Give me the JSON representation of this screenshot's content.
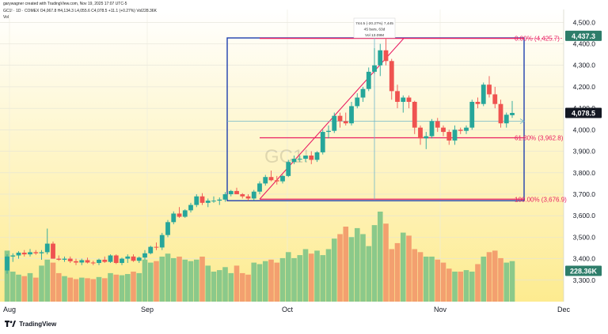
{
  "header": {
    "credit": "garywagner created with TradingView.com, Nov 19, 2025 17:07 UTC-5",
    "symbol_line": "GC1! · 1D · COMEX  O4,067.8  H4,134.3  L4,055.6  C4,078.5  +11.1 (+0.27%)  Vol228.36K",
    "vol_label": "Vol"
  },
  "branding": {
    "name": "TradingView"
  },
  "watermark": "GC1!",
  "measure_box": {
    "line1": "744.5 (-20.27%) 7,445",
    "line2": "45 bars, 63d",
    "line3": "Vol 13.09M"
  },
  "colors": {
    "up": "#26a69a",
    "down": "#ef5350",
    "vol_up": "#8bc98a",
    "vol_down": "#f3a06f",
    "fib": "#e91e63",
    "box": "#1e3fae",
    "trend": "#e91e63"
  },
  "chart_data": {
    "type": "candlestick",
    "x_ticks": [
      "Aug",
      "Sep",
      "Oct",
      "Nov",
      "Dec"
    ],
    "y_ticks": [
      "3,300.0",
      "3,400.0",
      "3,500.0",
      "3,600.0",
      "3,700.0",
      "3,800.0",
      "3,900.0",
      "4,000.0",
      "4,100.0",
      "4,200.0",
      "4,300.0",
      "4,400.0",
      "4,500.0"
    ],
    "ylim": [
      3200,
      4560
    ],
    "grid": true,
    "price_labels": {
      "last": "4,078.5",
      "high": "4,437.3",
      "volume": "228.36K"
    },
    "fib_levels": [
      {
        "label": "0.00% (4,425.7)",
        "value": 4425.7
      },
      {
        "label": "61.80% (3,962.8)",
        "value": 3962.8
      },
      {
        "label": "100.00% (3,676.9)",
        "value": 3676.9
      }
    ],
    "candles": [
      [
        3345,
        3420,
        3330,
        3410,
        170
      ],
      [
        3410,
        3425,
        3385,
        3415,
        100
      ],
      [
        3415,
        3435,
        3400,
        3428,
        90
      ],
      [
        3428,
        3440,
        3410,
        3420,
        85
      ],
      [
        3420,
        3445,
        3410,
        3430,
        95
      ],
      [
        3430,
        3440,
        3418,
        3425,
        80
      ],
      [
        3425,
        3440,
        3395,
        3430,
        120
      ],
      [
        3430,
        3540,
        3420,
        3470,
        140
      ],
      [
        3470,
        3480,
        3400,
        3400,
        130
      ],
      [
        3400,
        3415,
        3390,
        3395,
        95
      ],
      [
        3395,
        3410,
        3385,
        3400,
        85
      ],
      [
        3400,
        3410,
        3380,
        3388,
        80
      ],
      [
        3388,
        3400,
        3370,
        3382,
        75
      ],
      [
        3382,
        3400,
        3370,
        3393,
        80
      ],
      [
        3393,
        3405,
        3378,
        3382,
        78
      ],
      [
        3382,
        3390,
        3370,
        3380,
        75
      ],
      [
        3380,
        3400,
        3370,
        3395,
        82
      ],
      [
        3395,
        3410,
        3380,
        3385,
        78
      ],
      [
        3385,
        3420,
        3380,
        3415,
        95
      ],
      [
        3415,
        3420,
        3375,
        3380,
        90
      ],
      [
        3380,
        3405,
        3370,
        3400,
        88
      ],
      [
        3400,
        3420,
        3380,
        3410,
        92
      ],
      [
        3410,
        3420,
        3385,
        3390,
        100
      ],
      [
        3390,
        3410,
        3380,
        3405,
        95
      ],
      [
        3405,
        3440,
        3395,
        3425,
        140
      ],
      [
        3425,
        3460,
        3420,
        3455,
        130
      ],
      [
        3455,
        3475,
        3440,
        3452,
        135
      ],
      [
        3452,
        3520,
        3440,
        3510,
        150
      ],
      [
        3510,
        3580,
        3500,
        3570,
        160
      ],
      [
        3570,
        3620,
        3560,
        3610,
        145
      ],
      [
        3610,
        3640,
        3590,
        3595,
        150
      ],
      [
        3595,
        3630,
        3590,
        3625,
        140
      ],
      [
        3625,
        3660,
        3615,
        3650,
        135
      ],
      [
        3650,
        3700,
        3640,
        3690,
        140
      ],
      [
        3690,
        3705,
        3650,
        3660,
        150
      ],
      [
        3660,
        3680,
        3640,
        3670,
        120
      ],
      [
        3670,
        3690,
        3660,
        3670,
        100
      ],
      [
        3670,
        3685,
        3650,
        3675,
        105
      ],
      [
        3675,
        3710,
        3665,
        3700,
        115
      ],
      [
        3700,
        3720,
        3690,
        3715,
        95
      ],
      [
        3715,
        3730,
        3700,
        3700,
        120
      ],
      [
        3700,
        3705,
        3680,
        3690,
        95
      ],
      [
        3690,
        3700,
        3670,
        3680,
        90
      ],
      [
        3680,
        3720,
        3670,
        3712,
        130
      ],
      [
        3712,
        3760,
        3700,
        3750,
        125
      ],
      [
        3750,
        3790,
        3740,
        3780,
        135
      ],
      [
        3780,
        3810,
        3760,
        3765,
        140
      ],
      [
        3765,
        3785,
        3745,
        3760,
        130
      ],
      [
        3760,
        3790,
        3750,
        3785,
        145
      ],
      [
        3785,
        3860,
        3780,
        3850,
        165
      ],
      [
        3850,
        3880,
        3840,
        3865,
        145
      ],
      [
        3865,
        3880,
        3850,
        3865,
        155
      ],
      [
        3865,
        3880,
        3850,
        3880,
        175
      ],
      [
        3880,
        3900,
        3840,
        3860,
        160
      ],
      [
        3860,
        3900,
        3850,
        3895,
        170
      ],
      [
        3895,
        4000,
        3885,
        3990,
        155
      ],
      [
        3990,
        4020,
        3960,
        3995,
        175
      ],
      [
        3995,
        4080,
        3985,
        4065,
        210
      ],
      [
        4065,
        4080,
        4010,
        4040,
        225
      ],
      [
        4040,
        4080,
        4020,
        4030,
        250
      ],
      [
        4030,
        4130,
        4020,
        4110,
        215
      ],
      [
        4110,
        4170,
        4100,
        4150,
        245
      ],
      [
        4150,
        4200,
        4130,
        4190,
        225
      ],
      [
        4190,
        4290,
        4180,
        4270,
        185
      ],
      [
        4270,
        4380,
        4260,
        4300,
        255
      ],
      [
        4300,
        4400,
        4250,
        4370,
        300
      ],
      [
        4370,
        4437,
        4300,
        4320,
        260
      ],
      [
        4320,
        4330,
        4140,
        4180,
        175
      ],
      [
        4180,
        4210,
        4100,
        4130,
        195
      ],
      [
        4130,
        4160,
        4080,
        4150,
        230
      ],
      [
        4150,
        4160,
        4100,
        4130,
        220
      ],
      [
        4130,
        4135,
        3980,
        4010,
        175
      ],
      [
        4010,
        4020,
        3930,
        3960,
        165
      ],
      [
        3960,
        3990,
        3910,
        3970,
        150
      ],
      [
        3970,
        4050,
        3960,
        4040,
        150
      ],
      [
        4040,
        4055,
        3990,
        4010,
        140
      ],
      [
        4010,
        4020,
        3970,
        3990,
        130
      ],
      [
        3990,
        4000,
        3930,
        3950,
        110
      ],
      [
        3950,
        4020,
        3930,
        4000,
        100
      ],
      [
        4000,
        4010,
        3980,
        3995,
        100
      ],
      [
        3995,
        4020,
        3980,
        4010,
        105
      ],
      [
        4010,
        4140,
        4000,
        4130,
        100
      ],
      [
        4130,
        4150,
        4100,
        4120,
        125
      ],
      [
        4120,
        4220,
        4110,
        4210,
        150
      ],
      [
        4210,
        4250,
        4150,
        4165,
        165
      ],
      [
        4165,
        4200,
        4100,
        4120,
        170
      ],
      [
        4120,
        4140,
        4010,
        4030,
        145
      ],
      [
        4030,
        4080,
        4010,
        4070,
        130
      ],
      [
        4067.8,
        4134.3,
        4055.6,
        4078.5,
        135
      ]
    ]
  }
}
